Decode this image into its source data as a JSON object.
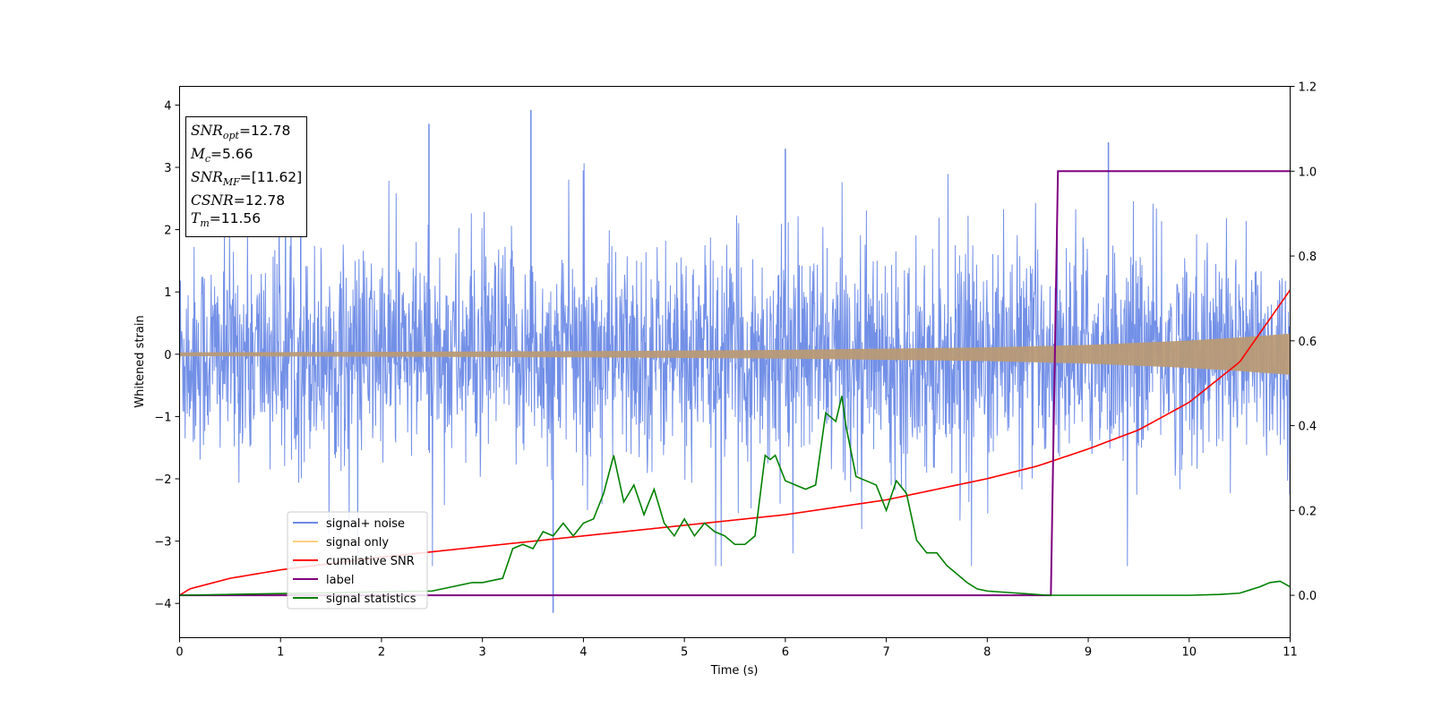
{
  "chart_data": {
    "type": "line",
    "title": "",
    "xlabel": "Time (s)",
    "ylabel": "Whitened strain",
    "xlim": [
      0,
      11
    ],
    "ylim": [
      -4.55,
      4.3
    ],
    "y2lim": [
      -0.1,
      1.2
    ],
    "xticks": [
      "0",
      "1",
      "2",
      "3",
      "4",
      "5",
      "6",
      "7",
      "8",
      "9",
      "10",
      "11"
    ],
    "yticks": [
      "−4",
      "−3",
      "−2",
      "−1",
      "0",
      "1",
      "2",
      "3",
      "4"
    ],
    "y2ticks": [
      "0.0",
      "0.2",
      "0.4",
      "0.6",
      "0.8",
      "1.0",
      "1.2"
    ],
    "grid": false,
    "legend_position": "lower-left",
    "legend": [
      "signal+ noise",
      "signal only",
      "cumilative SNR",
      "label",
      "signal statistics"
    ],
    "colors": {
      "signal_noise": "#6b8ae6",
      "signal_only": "#ffb84d",
      "cumulative_snr": "#ff0000",
      "label": "#800080",
      "signal_statistics": "#008000",
      "overlap": "#b89a76"
    },
    "stats_box": {
      "snr_opt": "SNR",
      "snr_opt_sub": "opt",
      "snr_opt_value": "=12.78",
      "mc": "M",
      "mc_sub": "c",
      "mc_value": "=5.66",
      "snr_mf": "SNR",
      "snr_mf_sub": "MF",
      "snr_mf_value": "=[11.62]",
      "csnr": "CSNR",
      "csnr_value": "=12.78",
      "tm": "T",
      "tm_sub": "m",
      "tm_value": "=11.56"
    },
    "series": [
      {
        "name": "signal+ noise",
        "axis": "left",
        "description_envelope": {
          "x": [
            0,
            11
          ],
          "typical_abs": 1.2,
          "max_peak": 3.92,
          "min_peak": -4.15
        }
      },
      {
        "name": "signal only",
        "axis": "left",
        "envelope_x": [
          0,
          2,
          4,
          6,
          8,
          9,
          10,
          10.5,
          11
        ],
        "envelope_y": [
          0.03,
          0.04,
          0.05,
          0.07,
          0.11,
          0.15,
          0.22,
          0.27,
          0.33
        ]
      },
      {
        "name": "cumilative SNR",
        "axis": "right",
        "x": [
          0,
          0.1,
          0.5,
          1,
          2,
          3,
          4,
          5,
          6,
          7,
          8,
          8.5,
          9,
          9.5,
          10,
          10.5,
          11
        ],
        "y": [
          0.0,
          0.015,
          0.04,
          0.06,
          0.09,
          0.115,
          0.14,
          0.165,
          0.19,
          0.225,
          0.275,
          0.305,
          0.345,
          0.39,
          0.455,
          0.55,
          0.72
        ]
      },
      {
        "name": "label",
        "axis": "right",
        "x": [
          0,
          8.63,
          8.7,
          11
        ],
        "y": [
          0,
          0,
          1,
          1
        ]
      },
      {
        "name": "signal statistics",
        "axis": "right",
        "x": [
          0,
          2.5,
          2.7,
          2.9,
          3.0,
          3.2,
          3.3,
          3.4,
          3.5,
          3.6,
          3.7,
          3.8,
          3.9,
          4.0,
          4.1,
          4.2,
          4.3,
          4.4,
          4.5,
          4.6,
          4.7,
          4.8,
          4.9,
          5.0,
          5.1,
          5.2,
          5.3,
          5.4,
          5.5,
          5.6,
          5.7,
          5.8,
          5.85,
          5.9,
          6.0,
          6.1,
          6.2,
          6.3,
          6.4,
          6.5,
          6.56,
          6.6,
          6.7,
          6.8,
          6.9,
          7.0,
          7.1,
          7.2,
          7.3,
          7.4,
          7.5,
          7.6,
          7.7,
          7.8,
          7.9,
          8.0,
          8.3,
          8.6,
          9.0,
          9.5,
          10.0,
          10.3,
          10.5,
          10.7,
          10.8,
          10.9,
          11.0
        ],
        "y": [
          0.0,
          0.01,
          0.02,
          0.03,
          0.03,
          0.04,
          0.11,
          0.12,
          0.11,
          0.15,
          0.14,
          0.17,
          0.14,
          0.17,
          0.18,
          0.24,
          0.33,
          0.22,
          0.26,
          0.19,
          0.25,
          0.17,
          0.14,
          0.18,
          0.14,
          0.17,
          0.15,
          0.14,
          0.12,
          0.12,
          0.14,
          0.33,
          0.32,
          0.33,
          0.27,
          0.26,
          0.25,
          0.26,
          0.43,
          0.41,
          0.47,
          0.4,
          0.28,
          0.27,
          0.26,
          0.2,
          0.27,
          0.24,
          0.13,
          0.1,
          0.1,
          0.07,
          0.05,
          0.03,
          0.015,
          0.01,
          0.005,
          0.0,
          0.0,
          0.0,
          0.0,
          0.002,
          0.005,
          0.02,
          0.03,
          0.033,
          0.02
        ]
      }
    ]
  }
}
